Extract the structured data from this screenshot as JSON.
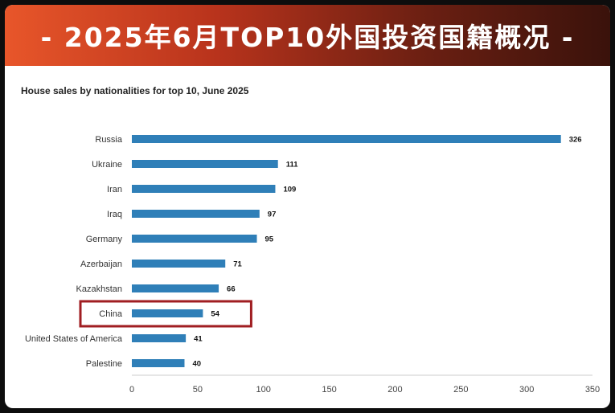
{
  "banner": {
    "title": "- 2025年6月TOP10外国投资国籍概况 -"
  },
  "colors": {
    "bar": "#2f7fb8",
    "highlight": "#a01e22",
    "axis": "#cccccc"
  },
  "chart_data": {
    "type": "bar",
    "orientation": "horizontal",
    "title": "House sales by nationalities for top 10, June 2025",
    "xlabel": "",
    "ylabel": "",
    "xlim": [
      0,
      350
    ],
    "xticks": [
      0,
      50,
      100,
      150,
      200,
      250,
      300,
      350
    ],
    "grid": false,
    "categories": [
      "Russia",
      "Ukraine",
      "Iran",
      "Iraq",
      "Germany",
      "Azerbaijan",
      "Kazakhstan",
      "China",
      "United States of America",
      "Palestine"
    ],
    "values": [
      326,
      111,
      109,
      97,
      95,
      71,
      66,
      54,
      41,
      40
    ],
    "highlighted_category": "China"
  }
}
